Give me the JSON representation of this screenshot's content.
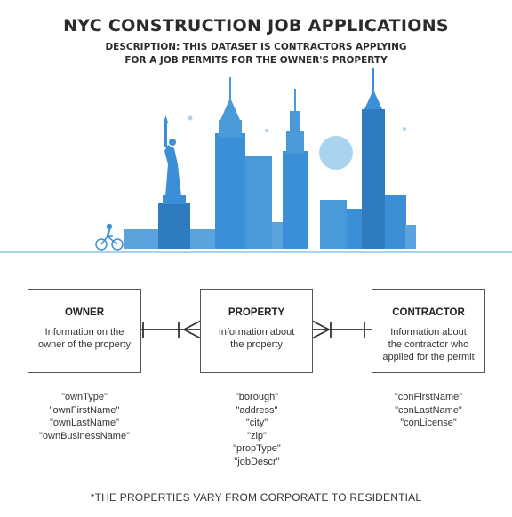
{
  "header": {
    "title": "NYC CONSTRUCTION JOB APPLICATIONS",
    "description_line1": "DESCRIPTION: THIS DATASET IS CONTRACTORS APPLYING",
    "description_line2": "FOR A JOB PERMITS FOR THE OWNER'S PROPERTY"
  },
  "colors": {
    "accent": "#3a8fd6",
    "accent_light": "#a9d3ef",
    "accent_dark": "#2f7bbf"
  },
  "entities": [
    {
      "name": "OWNER",
      "description_lines": [
        "Information on the",
        "owner of the property"
      ],
      "attributes": [
        "\"ownType\"",
        "\"ownFirstName\"",
        "\"ownLastName\"",
        "\"ownBusinessName\""
      ]
    },
    {
      "name": "PROPERTY",
      "description_lines": [
        "Information about",
        "the property"
      ],
      "attributes": [
        "\"borough\"",
        "\"address\"",
        "\"city\"",
        "\"zip\"",
        "\"propType\"",
        "\"jobDescr\""
      ]
    },
    {
      "name": "CONTRACTOR",
      "description_lines": [
        "Information about",
        "the contractor who",
        "applied for the permit"
      ],
      "attributes": [
        "\"conFirstName\"",
        "\"conLastName\"",
        "\"conLicense\""
      ]
    }
  ],
  "footnote": "*THE PROPERTIES VARY FROM CORPORATE TO RESIDENTIAL"
}
